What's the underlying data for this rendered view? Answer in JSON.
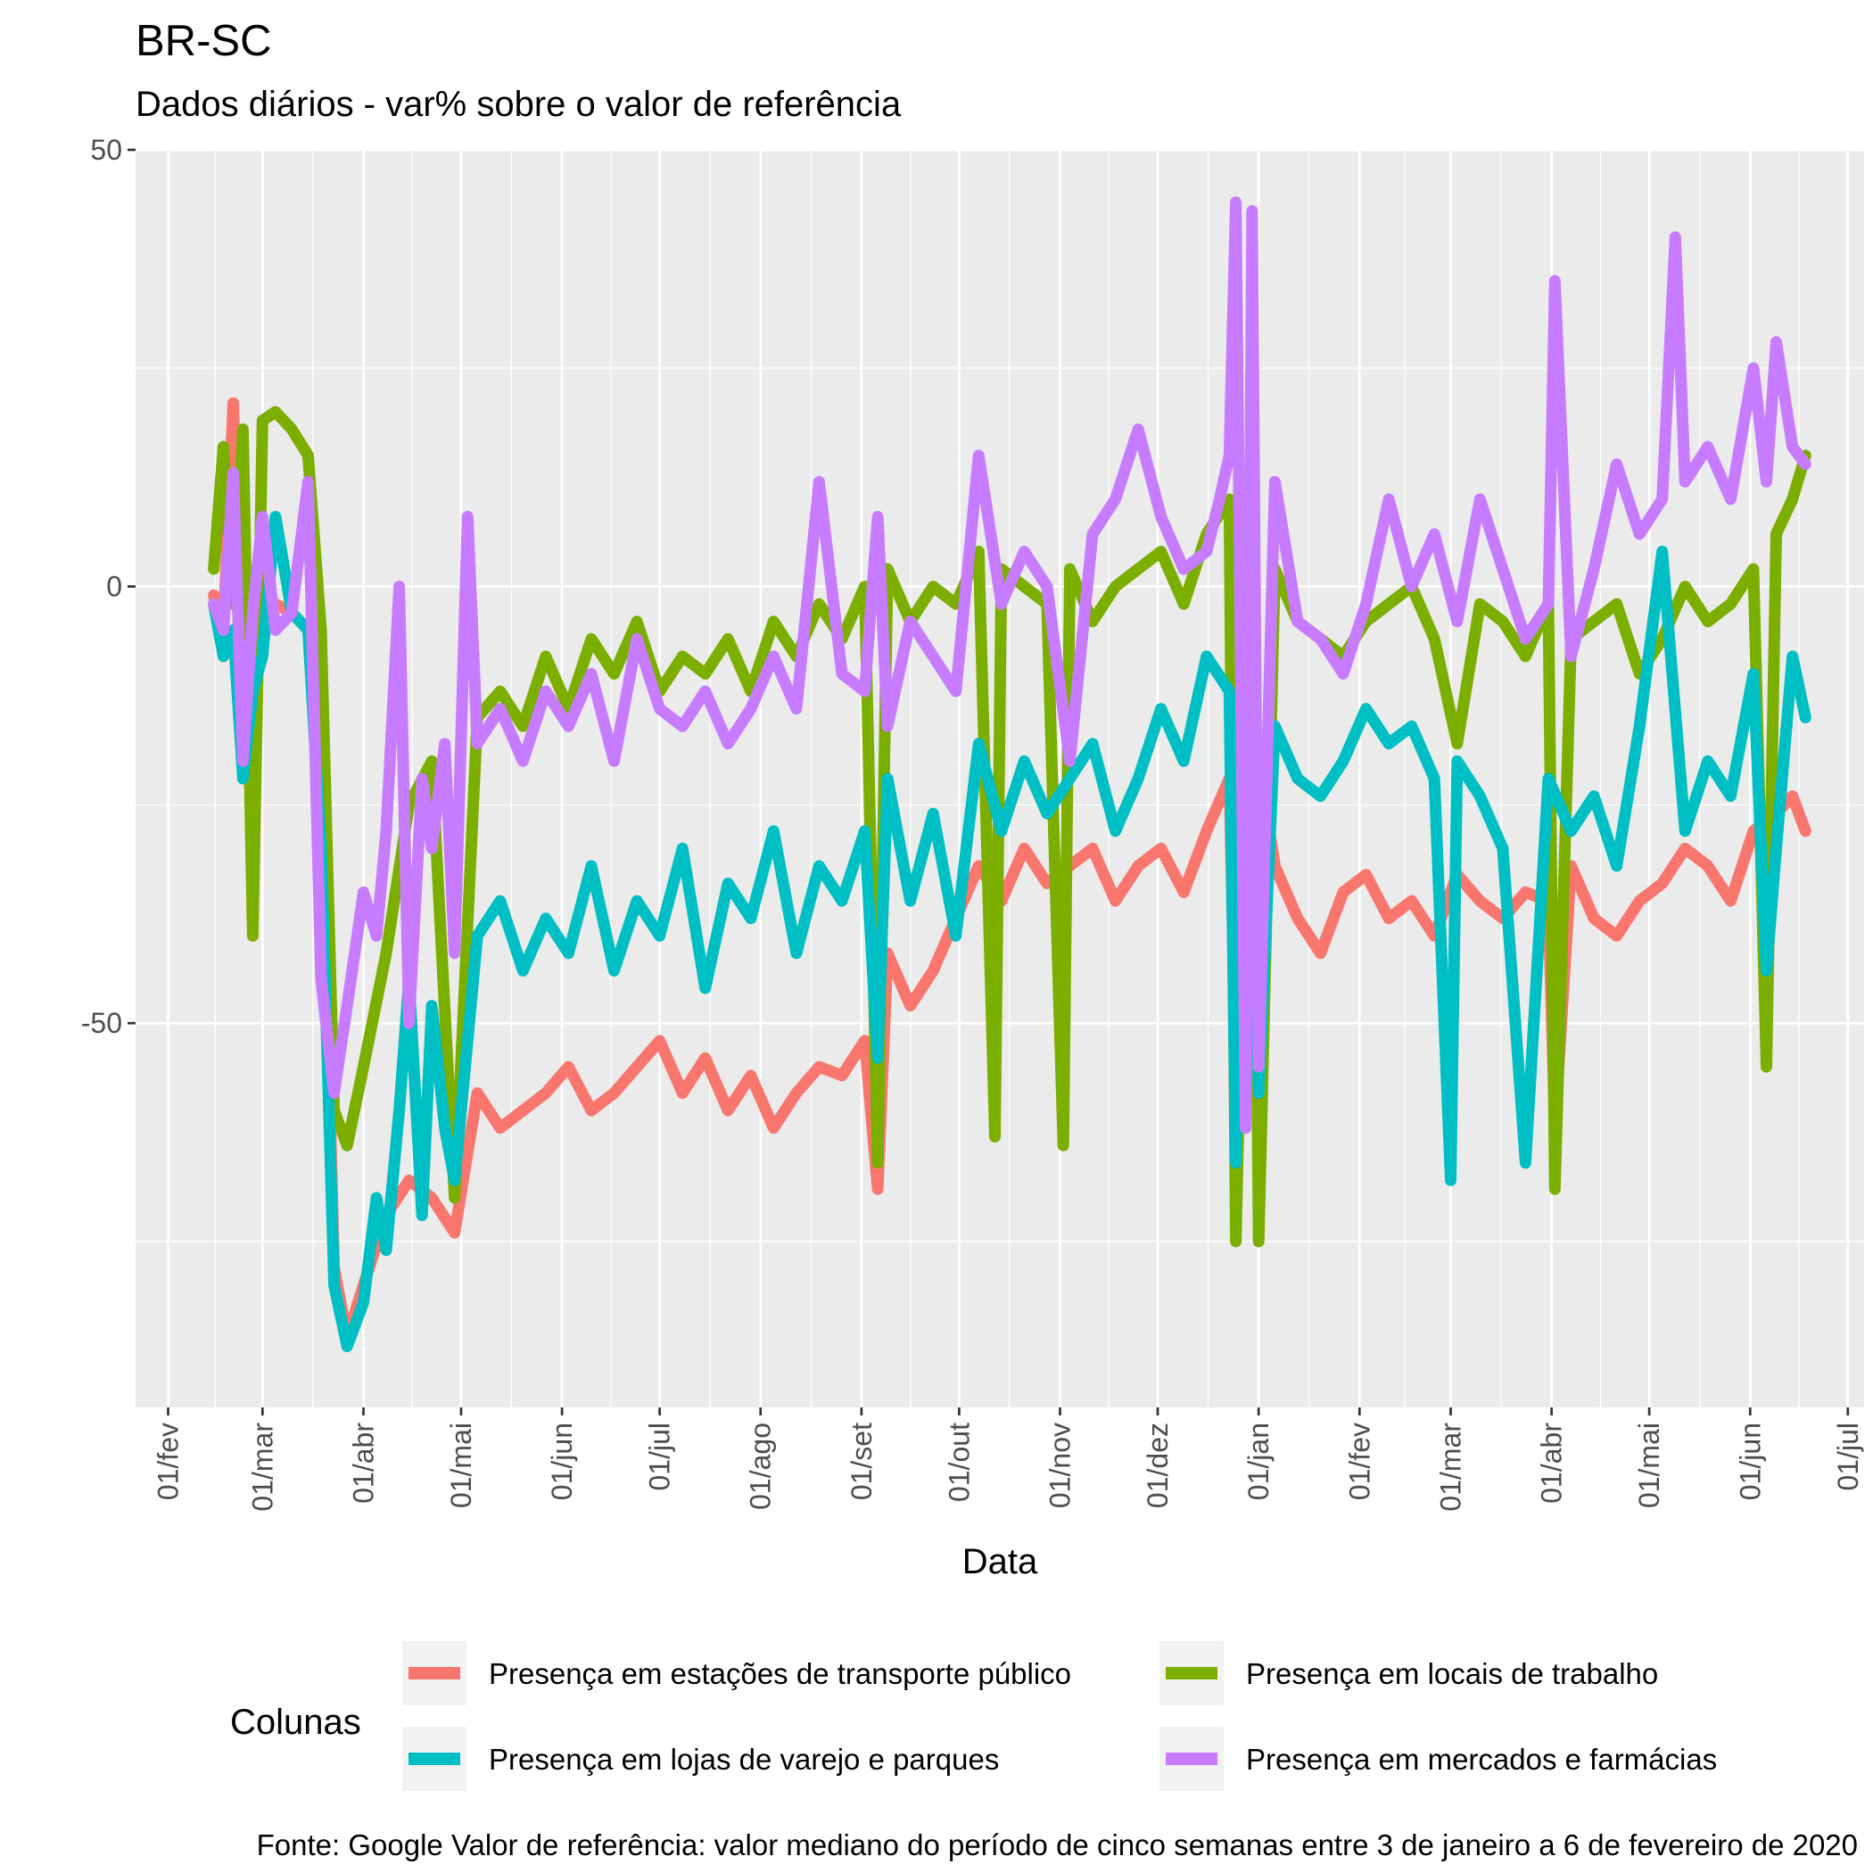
{
  "chart_data": {
    "type": "line",
    "title": "BR-SC",
    "subtitle": "Dados diários - var% sobre o valor de referência",
    "xlabel": "Data",
    "ylabel": "",
    "ylim": [
      -94,
      50
    ],
    "xlim": [
      "2020-01-22",
      "2021-07-06"
    ],
    "y_ticks": [
      50,
      0,
      -50
    ],
    "y_tick_labels": [
      "50",
      "0",
      "-50"
    ],
    "x_ticks": [
      "2020-02-01",
      "2020-03-01",
      "2020-04-01",
      "2020-05-01",
      "2020-06-01",
      "2020-07-01",
      "2020-08-01",
      "2020-09-01",
      "2020-10-01",
      "2020-11-01",
      "2020-12-01",
      "2021-01-01",
      "2021-02-01",
      "2021-03-01",
      "2021-04-01",
      "2021-05-01",
      "2021-06-01",
      "2021-07-01"
    ],
    "x_tick_labels": [
      "01/fev",
      "01/mar",
      "01/abr",
      "01/mai",
      "01/jun",
      "01/jul",
      "01/ago",
      "01/set",
      "01/out",
      "01/nov",
      "01/dez",
      "01/jan",
      "01/fev",
      "01/mar",
      "01/abr",
      "01/mai",
      "01/jun",
      "01/jul"
    ],
    "grid": true,
    "legend_title": "Colunas",
    "legend_position": "bottom",
    "caption": "Fonte: Google   Valor de referência: valor mediano do período de cinco semanas entre 3 de janeiro a 6 de fevereiro de 2020",
    "colors": {
      "panel": "#ebebeb",
      "grid": "#ffffff",
      "transit": "#f8766d",
      "workplaces": "#7cae00",
      "retail": "#00bfc4",
      "grocery": "#c77cff"
    },
    "series": [
      {
        "key": "transit",
        "name": "Presença em estações de transporte público",
        "x": [
          "2020-02-15",
          "2020-02-18",
          "2020-02-21",
          "2020-02-23",
          "2020-02-26",
          "2020-03-01",
          "2020-03-05",
          "2020-03-10",
          "2020-03-15",
          "2020-03-19",
          "2020-03-23",
          "2020-03-27",
          "2020-04-01",
          "2020-04-08",
          "2020-04-15",
          "2020-04-22",
          "2020-04-29",
          "2020-05-06",
          "2020-05-13",
          "2020-05-20",
          "2020-05-27",
          "2020-06-03",
          "2020-06-10",
          "2020-06-17",
          "2020-06-24",
          "2020-07-01",
          "2020-07-08",
          "2020-07-15",
          "2020-07-22",
          "2020-07-29",
          "2020-08-05",
          "2020-08-12",
          "2020-08-19",
          "2020-08-26",
          "2020-09-02",
          "2020-09-06",
          "2020-09-09",
          "2020-09-16",
          "2020-09-23",
          "2020-09-30",
          "2020-10-07",
          "2020-10-14",
          "2020-10-21",
          "2020-10-28",
          "2020-11-04",
          "2020-11-11",
          "2020-11-18",
          "2020-11-25",
          "2020-12-02",
          "2020-12-09",
          "2020-12-16",
          "2020-12-23",
          "2020-12-25",
          "2020-12-30",
          "2021-01-01",
          "2021-01-06",
          "2021-01-13",
          "2021-01-20",
          "2021-01-27",
          "2021-02-03",
          "2021-02-10",
          "2021-02-17",
          "2021-02-24",
          "2021-03-03",
          "2021-03-10",
          "2021-03-17",
          "2021-03-24",
          "2021-03-31",
          "2021-04-02",
          "2021-04-07",
          "2021-04-14",
          "2021-04-21",
          "2021-04-28",
          "2021-05-05",
          "2021-05-12",
          "2021-05-19",
          "2021-05-26",
          "2021-06-02",
          "2021-06-09",
          "2021-06-14",
          "2021-06-18"
        ],
        "values": [
          -1,
          -5,
          21,
          -3,
          -14,
          -5,
          -2,
          -3,
          -5,
          -20,
          -78,
          -86,
          -80,
          -72,
          -68,
          -70,
          -74,
          -58,
          -62,
          -60,
          -58,
          -55,
          -60,
          -58,
          -55,
          -52,
          -58,
          -54,
          -60,
          -56,
          -62,
          -58,
          -55,
          -56,
          -52,
          -69,
          -42,
          -48,
          -44,
          -38,
          -32,
          -36,
          -30,
          -34,
          -32,
          -30,
          -36,
          -32,
          -30,
          -35,
          -28,
          -22,
          -56,
          -26,
          -20,
          -32,
          -38,
          -42,
          -35,
          -33,
          -38,
          -36,
          -40,
          -33,
          -36,
          -38,
          -35,
          -36,
          -62,
          -32,
          -38,
          -40,
          -36,
          -34,
          -30,
          -32,
          -36,
          -28,
          -26,
          -24,
          -28
        ]
      },
      {
        "key": "workplaces",
        "name": "Presença em locais de trabalho",
        "x": [
          "2020-02-15",
          "2020-02-18",
          "2020-02-21",
          "2020-02-24",
          "2020-02-27",
          "2020-03-01",
          "2020-03-05",
          "2020-03-10",
          "2020-03-15",
          "2020-03-19",
          "2020-03-23",
          "2020-03-27",
          "2020-04-01",
          "2020-04-08",
          "2020-04-15",
          "2020-04-22",
          "2020-04-29",
          "2020-05-06",
          "2020-05-13",
          "2020-05-20",
          "2020-05-27",
          "2020-06-03",
          "2020-06-10",
          "2020-06-17",
          "2020-06-24",
          "2020-07-01",
          "2020-07-08",
          "2020-07-15",
          "2020-07-22",
          "2020-07-29",
          "2020-08-05",
          "2020-08-12",
          "2020-08-19",
          "2020-08-26",
          "2020-09-02",
          "2020-09-06",
          "2020-09-09",
          "2020-09-16",
          "2020-09-23",
          "2020-09-30",
          "2020-10-07",
          "2020-10-12",
          "2020-10-14",
          "2020-10-21",
          "2020-10-28",
          "2020-11-02",
          "2020-11-04",
          "2020-11-11",
          "2020-11-18",
          "2020-11-25",
          "2020-12-02",
          "2020-12-09",
          "2020-12-16",
          "2020-12-23",
          "2020-12-25",
          "2020-12-30",
          "2021-01-01",
          "2021-01-06",
          "2021-01-13",
          "2021-01-20",
          "2021-01-27",
          "2021-02-03",
          "2021-02-10",
          "2021-02-17",
          "2021-02-24",
          "2021-03-03",
          "2021-03-10",
          "2021-03-17",
          "2021-03-24",
          "2021-03-31",
          "2021-04-02",
          "2021-04-07",
          "2021-04-14",
          "2021-04-21",
          "2021-04-28",
          "2021-05-05",
          "2021-05-12",
          "2021-05-19",
          "2021-05-26",
          "2021-06-02",
          "2021-06-06",
          "2021-06-09",
          "2021-06-14",
          "2021-06-18"
        ],
        "values": [
          2,
          16,
          -2,
          18,
          -40,
          19,
          20,
          18,
          15,
          -5,
          -60,
          -64,
          -55,
          -42,
          -25,
          -20,
          -70,
          -15,
          -12,
          -16,
          -8,
          -14,
          -6,
          -10,
          -4,
          -12,
          -8,
          -10,
          -6,
          -12,
          -4,
          -8,
          -2,
          -6,
          0,
          -66,
          2,
          -4,
          0,
          -2,
          4,
          -63,
          2,
          0,
          -2,
          -64,
          2,
          -4,
          0,
          2,
          4,
          -2,
          6,
          10,
          -75,
          8,
          -75,
          2,
          -4,
          -6,
          -8,
          -4,
          -2,
          0,
          -6,
          -18,
          -2,
          -4,
          -8,
          -2,
          -69,
          -6,
          -4,
          -2,
          -10,
          -6,
          0,
          -4,
          -2,
          2,
          -55,
          6,
          10,
          15
        ]
      },
      {
        "key": "retail",
        "name": "Presença em lojas de varejo e parques",
        "x": [
          "2020-02-15",
          "2020-02-18",
          "2020-02-21",
          "2020-02-24",
          "2020-02-27",
          "2020-03-01",
          "2020-03-05",
          "2020-03-10",
          "2020-03-15",
          "2020-03-19",
          "2020-03-23",
          "2020-03-27",
          "2020-04-01",
          "2020-04-05",
          "2020-04-08",
          "2020-04-12",
          "2020-04-15",
          "2020-04-19",
          "2020-04-22",
          "2020-04-26",
          "2020-04-29",
          "2020-05-06",
          "2020-05-13",
          "2020-05-20",
          "2020-05-27",
          "2020-06-03",
          "2020-06-10",
          "2020-06-17",
          "2020-06-24",
          "2020-07-01",
          "2020-07-08",
          "2020-07-15",
          "2020-07-22",
          "2020-07-29",
          "2020-08-05",
          "2020-08-12",
          "2020-08-19",
          "2020-08-26",
          "2020-09-02",
          "2020-09-06",
          "2020-09-09",
          "2020-09-16",
          "2020-09-23",
          "2020-09-30",
          "2020-10-07",
          "2020-10-14",
          "2020-10-21",
          "2020-10-28",
          "2020-11-04",
          "2020-11-11",
          "2020-11-18",
          "2020-11-25",
          "2020-12-02",
          "2020-12-09",
          "2020-12-16",
          "2020-12-23",
          "2020-12-25",
          "2020-12-28",
          "2020-12-30",
          "2021-01-01",
          "2021-01-06",
          "2021-01-13",
          "2021-01-20",
          "2021-01-27",
          "2021-02-03",
          "2021-02-10",
          "2021-02-17",
          "2021-02-24",
          "2021-03-01",
          "2021-03-03",
          "2021-03-10",
          "2021-03-17",
          "2021-03-24",
          "2021-03-31",
          "2021-04-07",
          "2021-04-14",
          "2021-04-21",
          "2021-04-28",
          "2021-05-05",
          "2021-05-12",
          "2021-05-19",
          "2021-05-26",
          "2021-06-02",
          "2021-06-06",
          "2021-06-09",
          "2021-06-14",
          "2021-06-18"
        ],
        "values": [
          -2,
          -8,
          -5,
          -22,
          -12,
          -8,
          8,
          -3,
          -5,
          -30,
          -80,
          -87,
          -82,
          -70,
          -76,
          -60,
          -45,
          -72,
          -48,
          -62,
          -68,
          -40,
          -36,
          -44,
          -38,
          -42,
          -32,
          -44,
          -36,
          -40,
          -30,
          -46,
          -34,
          -38,
          -28,
          -42,
          -32,
          -36,
          -28,
          -54,
          -22,
          -36,
          -26,
          -40,
          -18,
          -28,
          -20,
          -26,
          -22,
          -18,
          -28,
          -22,
          -14,
          -20,
          -8,
          -12,
          -66,
          8,
          -20,
          -58,
          -16,
          -22,
          -24,
          -20,
          -14,
          -18,
          -16,
          -22,
          -68,
          -20,
          -24,
          -30,
          -66,
          -22,
          -28,
          -24,
          -32,
          -16,
          4,
          -28,
          -20,
          -24,
          -10,
          -44,
          -30,
          -8,
          -15
        ]
      },
      {
        "key": "grocery",
        "name": "Presença em mercados e farmácias",
        "x": [
          "2020-02-15",
          "2020-02-18",
          "2020-02-21",
          "2020-02-24",
          "2020-02-27",
          "2020-03-01",
          "2020-03-05",
          "2020-03-10",
          "2020-03-15",
          "2020-03-19",
          "2020-03-23",
          "2020-03-27",
          "2020-04-01",
          "2020-04-05",
          "2020-04-08",
          "2020-04-12",
          "2020-04-15",
          "2020-04-19",
          "2020-04-22",
          "2020-04-26",
          "2020-04-29",
          "2020-05-03",
          "2020-05-06",
          "2020-05-13",
          "2020-05-20",
          "2020-05-27",
          "2020-06-03",
          "2020-06-10",
          "2020-06-17",
          "2020-06-24",
          "2020-07-01",
          "2020-07-08",
          "2020-07-15",
          "2020-07-22",
          "2020-07-29",
          "2020-08-05",
          "2020-08-12",
          "2020-08-19",
          "2020-08-26",
          "2020-09-02",
          "2020-09-06",
          "2020-09-09",
          "2020-09-16",
          "2020-09-23",
          "2020-09-30",
          "2020-10-07",
          "2020-10-14",
          "2020-10-21",
          "2020-10-28",
          "2020-11-04",
          "2020-11-11",
          "2020-11-18",
          "2020-11-25",
          "2020-12-02",
          "2020-12-09",
          "2020-12-16",
          "2020-12-20",
          "2020-12-23",
          "2020-12-25",
          "2020-12-28",
          "2020-12-30",
          "2021-01-01",
          "2021-01-06",
          "2021-01-13",
          "2021-01-20",
          "2021-01-27",
          "2021-02-03",
          "2021-02-10",
          "2021-02-17",
          "2021-02-24",
          "2021-03-03",
          "2021-03-10",
          "2021-03-17",
          "2021-03-24",
          "2021-03-31",
          "2021-04-02",
          "2021-04-07",
          "2021-04-14",
          "2021-04-21",
          "2021-04-28",
          "2021-05-05",
          "2021-05-09",
          "2021-05-12",
          "2021-05-19",
          "2021-05-26",
          "2021-06-02",
          "2021-06-06",
          "2021-06-09",
          "2021-06-14",
          "2021-06-18"
        ],
        "values": [
          -2,
          -5,
          13,
          -20,
          -3,
          8,
          -5,
          -3,
          12,
          -45,
          -58,
          -48,
          -35,
          -40,
          -28,
          0,
          -50,
          -22,
          -30,
          -18,
          -42,
          8,
          -18,
          -14,
          -20,
          -12,
          -16,
          -10,
          -20,
          -6,
          -14,
          -16,
          -12,
          -18,
          -14,
          -8,
          -14,
          12,
          -10,
          -12,
          8,
          -16,
          -4,
          -8,
          -12,
          15,
          -2,
          4,
          0,
          -20,
          6,
          10,
          18,
          8,
          2,
          4,
          10,
          15,
          44,
          -62,
          43,
          -55,
          12,
          -4,
          -6,
          -10,
          -2,
          10,
          0,
          6,
          -4,
          10,
          2,
          -6,
          -2,
          35,
          -8,
          2,
          14,
          6,
          10,
          40,
          12,
          16,
          10,
          25,
          12,
          28,
          16,
          14
        ]
      }
    ]
  }
}
